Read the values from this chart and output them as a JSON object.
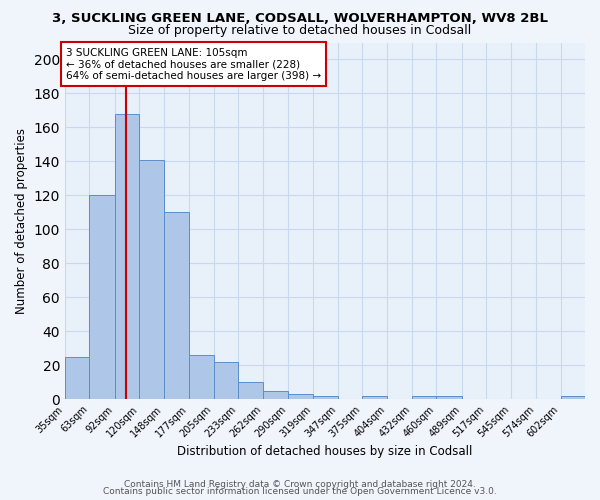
{
  "title_line1": "3, SUCKLING GREEN LANE, CODSALL, WOLVERHAMPTON, WV8 2BL",
  "title_line2": "Size of property relative to detached houses in Codsall",
  "xlabel": "Distribution of detached houses by size in Codsall",
  "ylabel": "Number of detached properties",
  "bin_labels": [
    "35sqm",
    "63sqm",
    "92sqm",
    "120sqm",
    "148sqm",
    "177sqm",
    "205sqm",
    "233sqm",
    "262sqm",
    "290sqm",
    "319sqm",
    "347sqm",
    "375sqm",
    "404sqm",
    "432sqm",
    "460sqm",
    "489sqm",
    "517sqm",
    "545sqm",
    "574sqm",
    "602sqm"
  ],
  "bin_edges": [
    35,
    63,
    92,
    120,
    148,
    177,
    205,
    233,
    262,
    290,
    319,
    347,
    375,
    404,
    432,
    460,
    489,
    517,
    545,
    574,
    602,
    630
  ],
  "bar_heights": [
    25,
    120,
    168,
    141,
    110,
    26,
    22,
    10,
    5,
    3,
    2,
    0,
    2,
    0,
    2,
    2,
    0,
    0,
    0,
    0,
    2
  ],
  "bar_color": "#aec6e8",
  "bar_edge_color": "#5b8fc9",
  "property_size": 105,
  "vline_color": "#cc0000",
  "annotation_line1": "3 SUCKLING GREEN LANE: 105sqm",
  "annotation_line2": "← 36% of detached houses are smaller (228)",
  "annotation_line3": "64% of semi-detached houses are larger (398) →",
  "annotation_box_edge_color": "#cc0000",
  "annotation_box_face_color": "#ffffff",
  "ylim": [
    0,
    210
  ],
  "yticks": [
    0,
    20,
    40,
    60,
    80,
    100,
    120,
    140,
    160,
    180,
    200
  ],
  "footer_line1": "Contains HM Land Registry data © Crown copyright and database right 2024.",
  "footer_line2": "Contains public sector information licensed under the Open Government Licence v3.0.",
  "background_color": "#f0f5fc",
  "plot_background_color": "#e8f0fa",
  "grid_color": "#c8d8ee",
  "title_fontsize": 9.5,
  "subtitle_fontsize": 9,
  "axis_label_fontsize": 8.5,
  "tick_fontsize": 7,
  "annotation_fontsize": 7.5,
  "footer_fontsize": 6.5
}
